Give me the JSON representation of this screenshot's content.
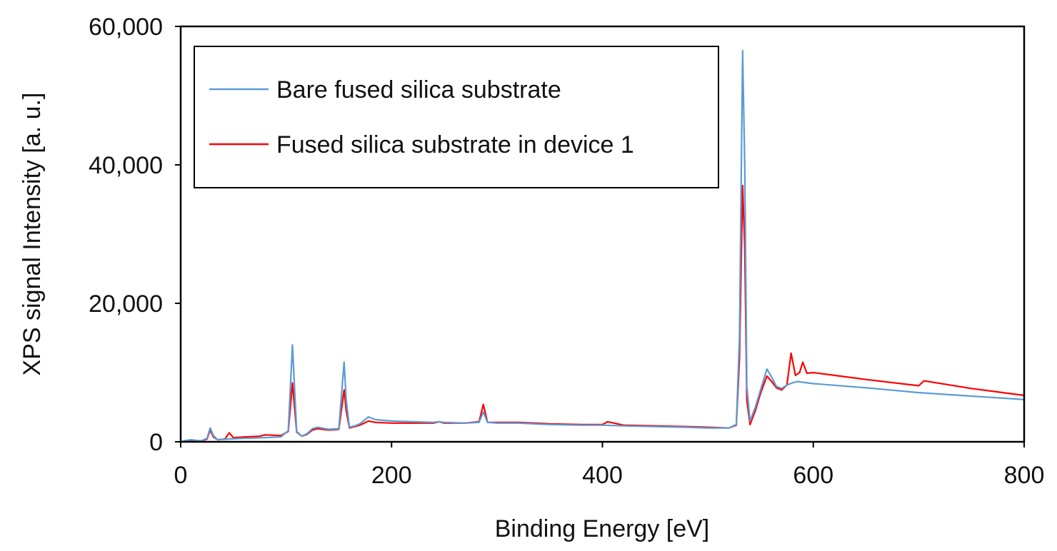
{
  "chart_data": {
    "type": "line",
    "title": "",
    "xlabel": "Binding Energy [eV]",
    "ylabel": "XPS signal Intensity [a. u.]",
    "xlim": [
      0,
      800
    ],
    "ylim": [
      0,
      60000
    ],
    "x_ticks": [
      0,
      200,
      400,
      600,
      800
    ],
    "x_tick_labels": [
      "0",
      "200",
      "400",
      "600",
      "800"
    ],
    "y_ticks": [
      0,
      20000,
      40000,
      60000
    ],
    "y_tick_labels": [
      "0",
      "20,000",
      "40,000",
      "60,000"
    ],
    "grid": false,
    "legend_position": "top-left",
    "series": [
      {
        "name": "Bare fused silica substrate",
        "color": "#5b9bd5",
        "x": [
          0,
          5,
          10,
          15,
          20,
          25,
          28,
          31,
          35,
          45,
          60,
          80,
          95,
          102,
          106,
          110,
          115,
          120,
          125,
          130,
          140,
          150,
          155,
          157,
          160,
          165,
          170,
          178,
          185,
          200,
          220,
          240,
          245,
          250,
          270,
          283,
          287,
          291,
          300,
          320,
          350,
          380,
          400,
          420,
          450,
          480,
          500,
          520,
          527,
          530,
          533,
          535,
          537,
          540,
          545,
          550,
          556,
          560,
          565,
          570,
          575,
          580,
          585,
          600,
          650,
          700,
          750,
          800
        ],
        "y": [
          0,
          200,
          300,
          200,
          150,
          500,
          2000,
          900,
          300,
          400,
          500,
          600,
          700,
          1600,
          14000,
          1500,
          800,
          1200,
          1900,
          2100,
          1800,
          1900,
          11500,
          6000,
          2100,
          2300,
          2600,
          3600,
          3200,
          3000,
          2900,
          2800,
          2900,
          2800,
          2700,
          2800,
          4300,
          2800,
          2700,
          2700,
          2500,
          2400,
          2400,
          2300,
          2200,
          2100,
          2000,
          2000,
          2500,
          15000,
          56500,
          40000,
          8000,
          3000,
          5000,
          7500,
          10500,
          9500,
          8000,
          7700,
          8200,
          8500,
          8700,
          8400,
          7800,
          7100,
          6600,
          6100
        ]
      },
      {
        "name": "Fused silica substrate in device 1",
        "color": "#ff0000",
        "x": [
          0,
          5,
          10,
          15,
          20,
          25,
          28,
          31,
          35,
          42,
          46,
          50,
          60,
          75,
          80,
          95,
          102,
          106,
          110,
          115,
          120,
          125,
          130,
          140,
          150,
          155,
          157,
          160,
          165,
          170,
          178,
          185,
          200,
          220,
          240,
          245,
          250,
          270,
          283,
          287,
          291,
          300,
          320,
          350,
          380,
          400,
          405,
          420,
          450,
          480,
          500,
          520,
          527,
          530,
          533,
          535,
          537,
          540,
          545,
          550,
          556,
          560,
          565,
          570,
          575,
          579,
          583,
          587,
          590,
          594,
          600,
          620,
          650,
          700,
          705,
          750,
          800
        ],
        "y": [
          0,
          100,
          200,
          150,
          100,
          400,
          1700,
          700,
          300,
          400,
          1300,
          600,
          700,
          800,
          1000,
          900,
          1500,
          8500,
          1400,
          800,
          1100,
          1700,
          1900,
          1700,
          1800,
          7500,
          4500,
          2000,
          2200,
          2400,
          3000,
          2800,
          2700,
          2700,
          2700,
          2900,
          2700,
          2700,
          2900,
          5400,
          2800,
          2800,
          2800,
          2600,
          2500,
          2500,
          2900,
          2400,
          2300,
          2200,
          2100,
          2000,
          2400,
          12000,
          37000,
          28000,
          6000,
          2500,
          4500,
          7000,
          9500,
          8800,
          7800,
          7500,
          8200,
          12800,
          9600,
          10000,
          11500,
          9900,
          10000,
          9600,
          9000,
          8100,
          8800,
          7700,
          6700
        ]
      }
    ]
  }
}
